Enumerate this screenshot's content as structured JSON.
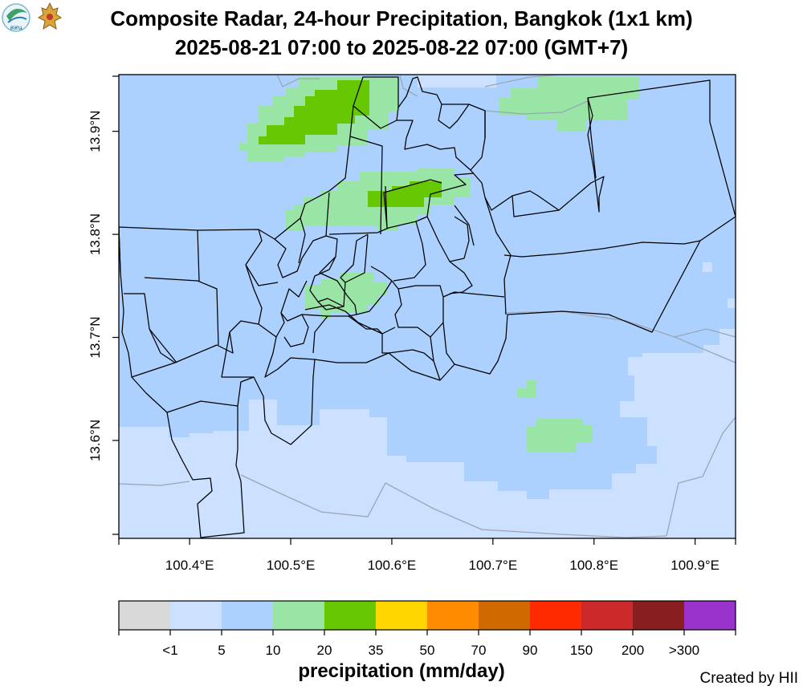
{
  "title_line1": "Composite Radar, 24-hour Precipitation, Bangkok (1x1 km)",
  "title_line2": "2025-08-21 07:00 to 2025-08-22 07:00 (GMT+7)",
  "logos": [
    {
      "name": "hii-logo",
      "text": "สสน"
    },
    {
      "name": "royal-emblem",
      "text": ""
    }
  ],
  "map": {
    "x_ticks": [
      "100.4°E",
      "100.5°E",
      "100.6°E",
      "100.7°E",
      "100.8°E",
      "100.9°E"
    ],
    "y_ticks": [
      "13.6°N",
      "13.7°N",
      "13.8°N",
      "13.9°N"
    ],
    "x_range": [
      100.33,
      100.94
    ],
    "y_range": [
      13.505,
      13.955
    ]
  },
  "legend": {
    "title": "precipitation (mm/day)",
    "labels": [
      "<1",
      "5",
      "10",
      "20",
      "35",
      "50",
      "70",
      "90",
      "150",
      "200",
      ">300"
    ],
    "colors": [
      "#d9d9d9",
      "#cce0ff",
      "#add1ff",
      "#99e5a5",
      "#66c800",
      "#ffd600",
      "#ff8c00",
      "#d06a00",
      "#ff2a00",
      "#cc2a2a",
      "#881e1e",
      "#9a33cc"
    ]
  },
  "credit": "Created by HII"
}
